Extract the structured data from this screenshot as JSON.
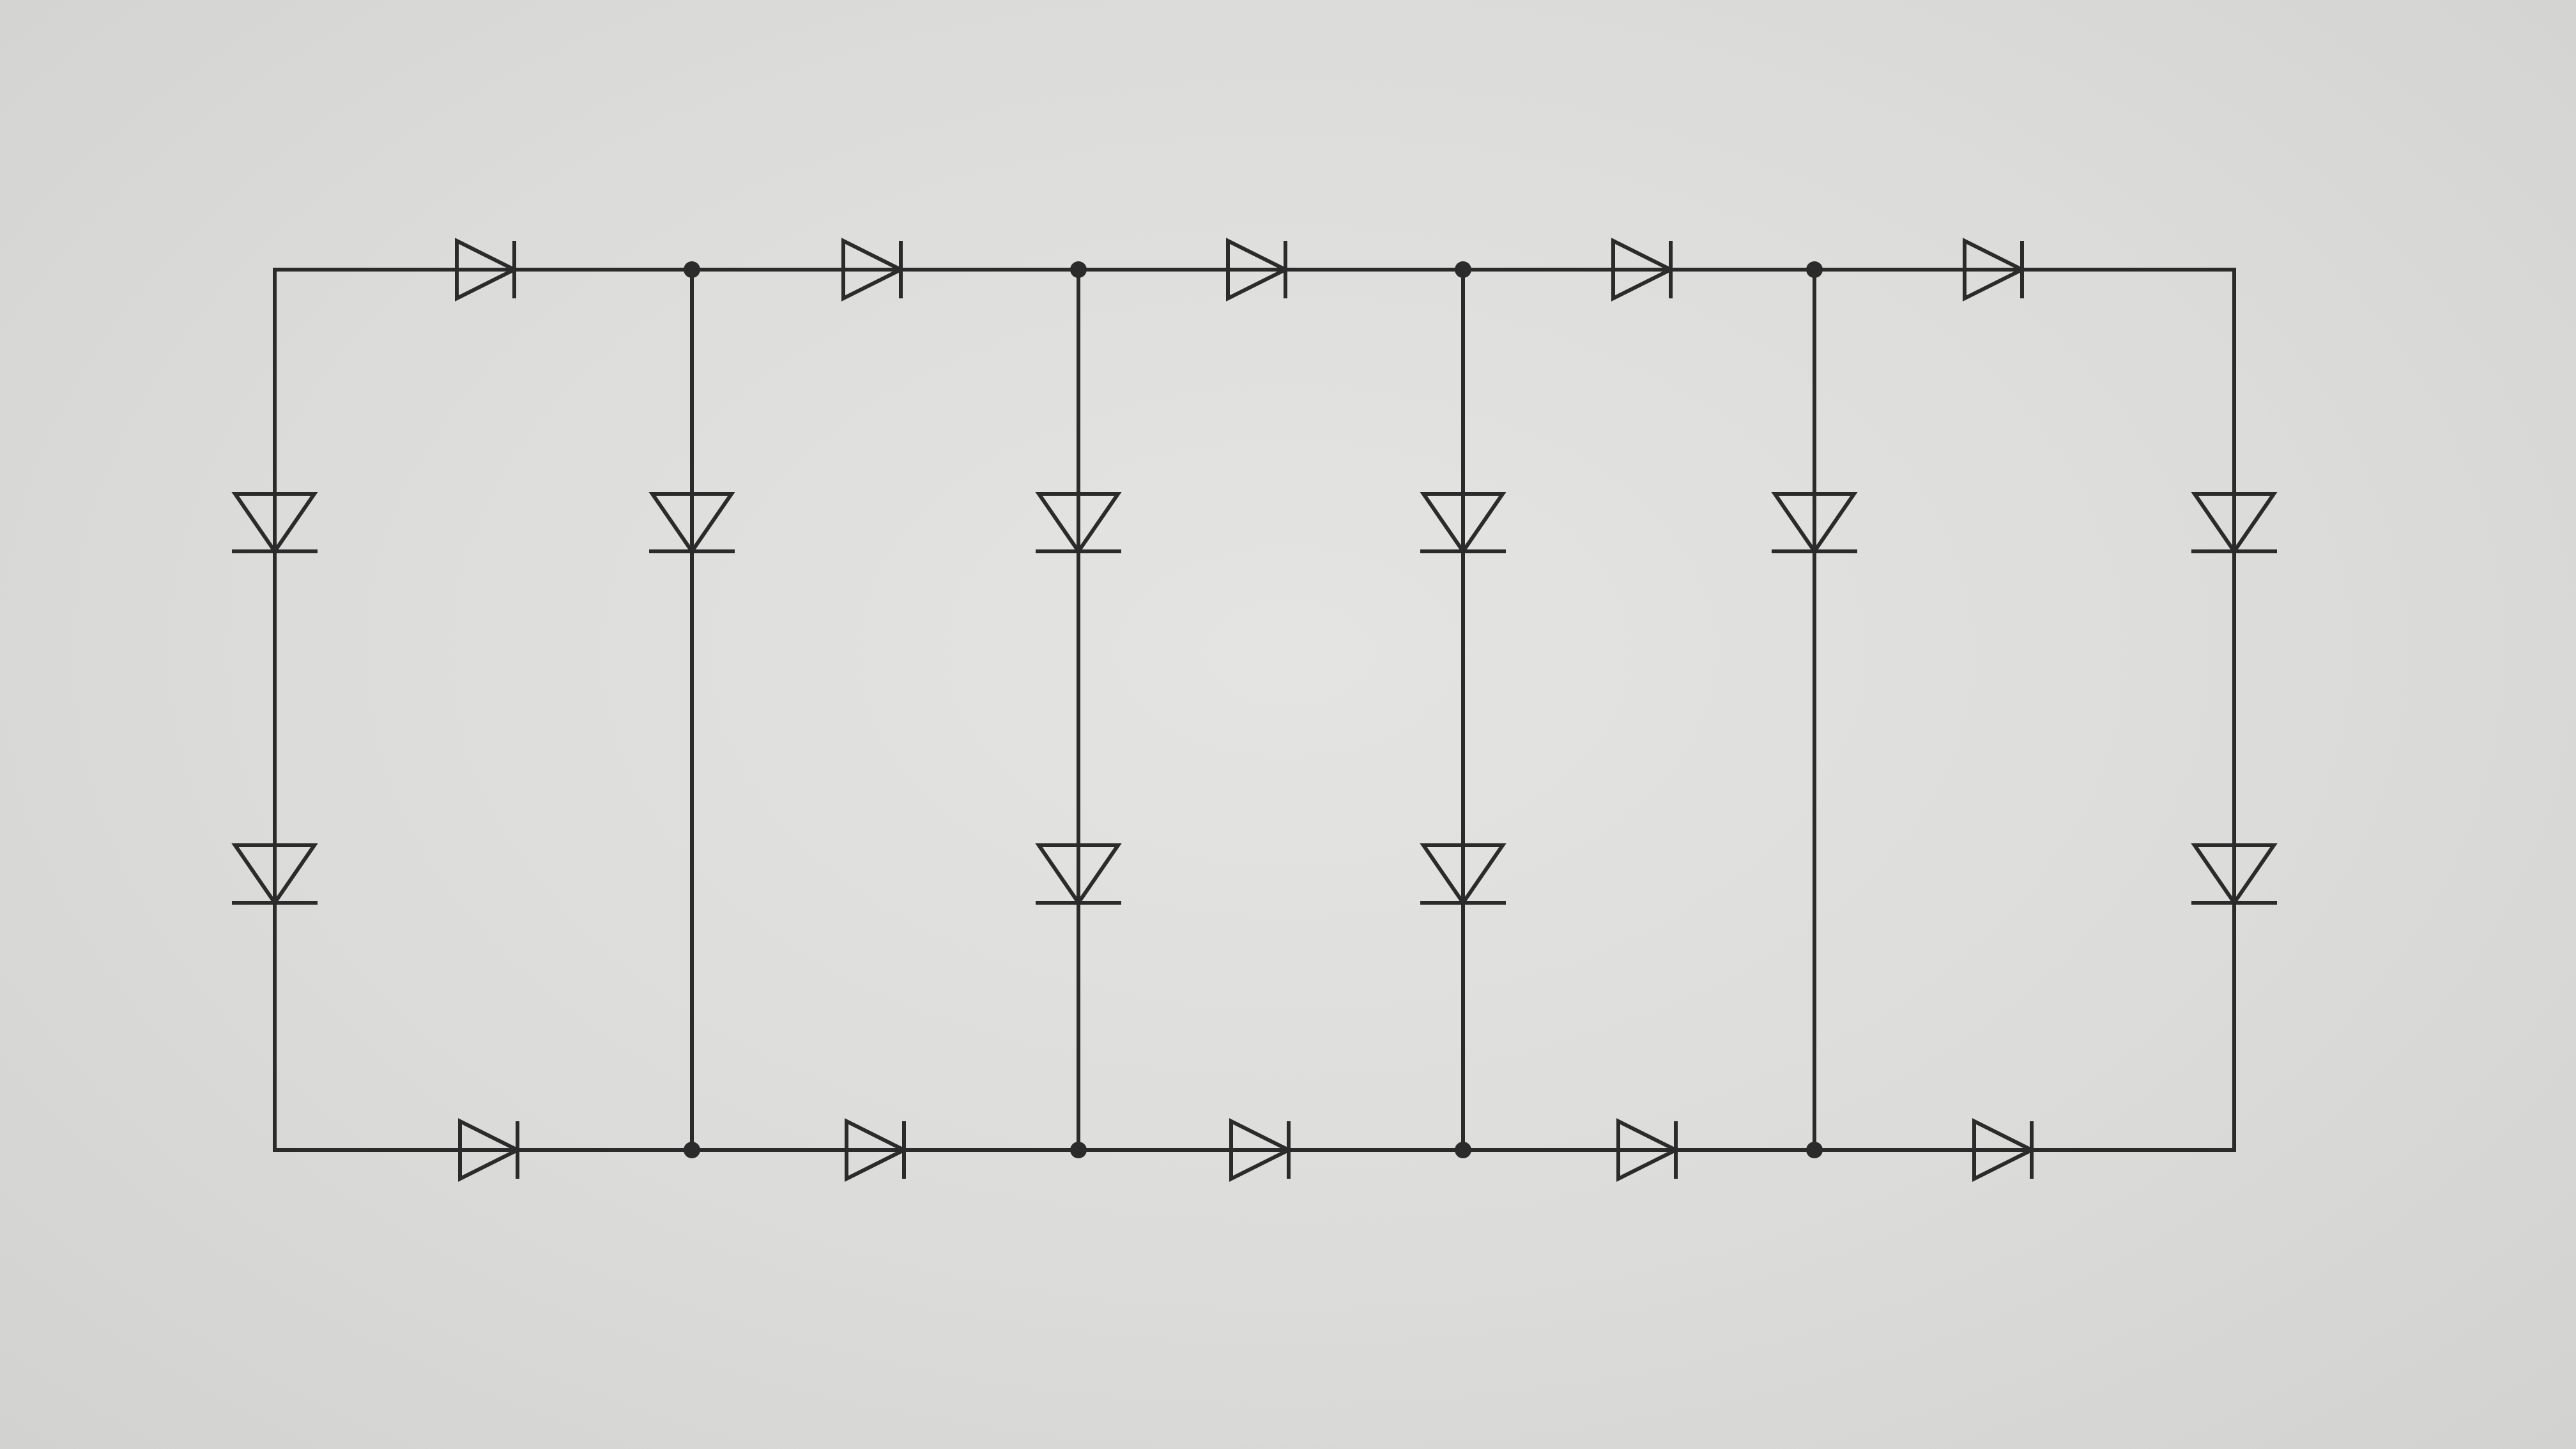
{
  "diagram": {
    "type": "diode-network",
    "ink_color": "#2b2b2b",
    "paper_color": "#dcdcda",
    "top_rail": {
      "diodes": 5,
      "direction": "right",
      "junctions": 4
    },
    "bottom_rail": {
      "diodes": 5,
      "direction": "right",
      "junctions": 4
    },
    "vertical_branches": [
      {
        "id": "left-edge",
        "diodes": 2,
        "direction": "down"
      },
      {
        "id": "branch-1",
        "diodes": 1,
        "direction": "down"
      },
      {
        "id": "branch-2",
        "diodes": 2,
        "direction": "down"
      },
      {
        "id": "branch-3",
        "diodes": 2,
        "direction": "down"
      },
      {
        "id": "branch-4",
        "diodes": 1,
        "direction": "down"
      },
      {
        "id": "right-edge",
        "diodes": 2,
        "direction": "down"
      }
    ]
  }
}
